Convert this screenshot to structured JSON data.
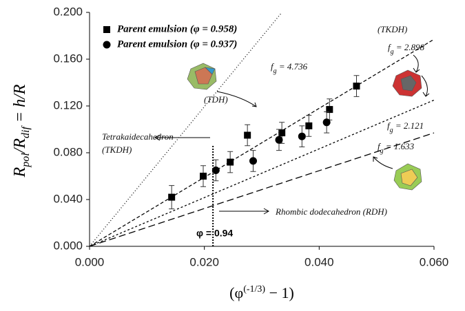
{
  "chart_data": {
    "type": "scatter",
    "xlabel": {
      "open": "(φ",
      "sup": "(-1/3)",
      "close": " − 1)"
    },
    "ylabel": {
      "r1": "R",
      "s1": "pol",
      "mid": "/R",
      "s2": "dif",
      "rest": " = h/R"
    },
    "xlim": [
      0,
      0.06
    ],
    "ylim": [
      0,
      0.2
    ],
    "xticks": [
      {
        "value": 0,
        "label": "0.000"
      },
      {
        "value": 0.02,
        "label": "0.020"
      },
      {
        "value": 0.04,
        "label": "0.040"
      },
      {
        "value": 0.06,
        "label": "0.060"
      }
    ],
    "yticks": [
      {
        "value": 0,
        "label": "0.000"
      },
      {
        "value": 0.04,
        "label": "0.040"
      },
      {
        "value": 0.08,
        "label": "0.080"
      },
      {
        "value": 0.12,
        "label": "0.120"
      },
      {
        "value": 0.16,
        "label": "0.160"
      },
      {
        "value": 0.2,
        "label": "0.200"
      }
    ],
    "legend": "upper left",
    "series": [
      {
        "name": "Parent emulsion (φ = 0.958)",
        "marker": "square",
        "color": "#000000",
        "x": [
          0.0143,
          0.0198,
          0.0245,
          0.0275,
          0.0335,
          0.0382,
          0.0418,
          0.0465
        ],
        "values": [
          0.042,
          0.06,
          0.072,
          0.095,
          0.097,
          0.103,
          0.117,
          0.137
        ],
        "errors": [
          0.01,
          0.009,
          0.009,
          0.009,
          0.009,
          0.009,
          0.009,
          0.009
        ]
      },
      {
        "name": "Parent emulsion (φ = 0.937)",
        "marker": "circle",
        "color": "#000000",
        "x": [
          0.022,
          0.0285,
          0.033,
          0.037,
          0.0413
        ],
        "values": [
          0.065,
          0.073,
          0.091,
          0.094,
          0.106
        ],
        "errors": [
          0.009,
          0.009,
          0.009,
          0.009,
          0.009
        ]
      }
    ],
    "reference_lines": [
      {
        "symbol": "f",
        "sub": "g",
        "text": " = 2.898",
        "dash": "5,3",
        "x": [
          0,
          0.06
        ],
        "values": [
          0,
          0.177
        ]
      },
      {
        "symbol": "f",
        "sub": "g",
        "text": " = 4.736",
        "dash": "1,3",
        "x": [
          0,
          0.0335
        ],
        "values": [
          0,
          0.2
        ]
      },
      {
        "symbol": "f",
        "sub": "g",
        "text": " = 2.121",
        "dash": "3,3",
        "x": [
          0,
          0.06
        ],
        "values": [
          0,
          0.125
        ]
      },
      {
        "symbol": "f",
        "sub": "g",
        "text": " = 1.633",
        "dash": "10,5",
        "x": [
          0,
          0.06
        ],
        "values": [
          0,
          0.097
        ]
      }
    ],
    "vline": {
      "label": "φ = 0.94",
      "x": [
        0.0215,
        0.0215
      ],
      "values": [
        0,
        0.086
      ]
    },
    "annotations": [
      "(TKDH)",
      "(TDH)",
      "Tetrakaidecahedron",
      "(TKDH)",
      "Rhombic dodecahedron  (RDH)"
    ]
  }
}
